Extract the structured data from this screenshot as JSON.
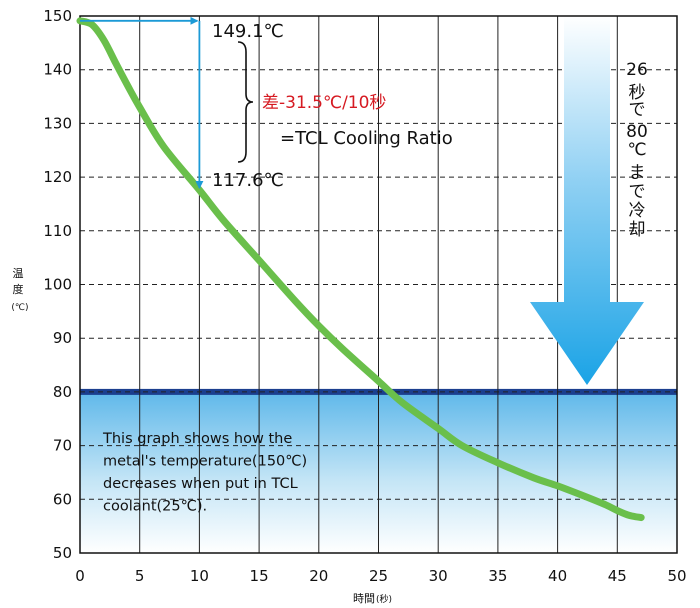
{
  "chart_data": {
    "type": "line",
    "xlabel": "時間",
    "xlabel_unit": "(秒)",
    "ylabel_lines": [
      "温",
      "度"
    ],
    "ylabel_unit": "(℃)",
    "xlim": [
      0,
      50
    ],
    "ylim": [
      50,
      150
    ],
    "x_ticks": [
      0,
      5,
      10,
      15,
      20,
      25,
      30,
      35,
      40,
      45,
      50
    ],
    "y_ticks": [
      50,
      60,
      70,
      80,
      90,
      100,
      110,
      120,
      130,
      140,
      150
    ],
    "grid": {
      "vertical": "solid",
      "horizontal": "dashed"
    },
    "colors": {
      "curve": "#6abf4b",
      "band_line": "#1b3f8f",
      "band_top": "#5fb8ea",
      "arrow": "#1aa3e6",
      "marker_arrow": "#1c9ad6",
      "highlight_text": "#d61a22"
    },
    "series": [
      {
        "x": [
          0,
          1,
          2,
          3,
          4,
          5,
          7,
          10,
          12,
          15,
          18,
          20,
          22,
          25,
          27,
          30,
          32,
          35,
          38,
          40,
          42,
          44,
          45,
          46,
          47
        ],
        "y": [
          149.1,
          148.4,
          145.5,
          141.2,
          137.0,
          133.0,
          125.7,
          117.6,
          112.0,
          104.5,
          97.0,
          92.3,
          88.0,
          82.0,
          78.0,
          73.2,
          70.0,
          66.8,
          64.0,
          62.5,
          60.8,
          59.0,
          57.9,
          57.0,
          56.6
        ]
      }
    ],
    "band": {
      "y_from": 50,
      "y_to": 80
    },
    "annotations": {
      "start_value": "149.1℃",
      "end_value": "117.6℃",
      "diff": "差-31.5℃/10秒",
      "ratio": "=TCL Cooling Ratio",
      "arrow_text": [
        "26",
        "秒",
        "で",
        "80",
        "℃",
        "ま",
        "で",
        "冷",
        "却"
      ],
      "note_lines": [
        "This graph shows how the",
        "metal's temperature(150℃)",
        "decreases when put in TCL",
        "coolant(25℃)."
      ]
    }
  }
}
